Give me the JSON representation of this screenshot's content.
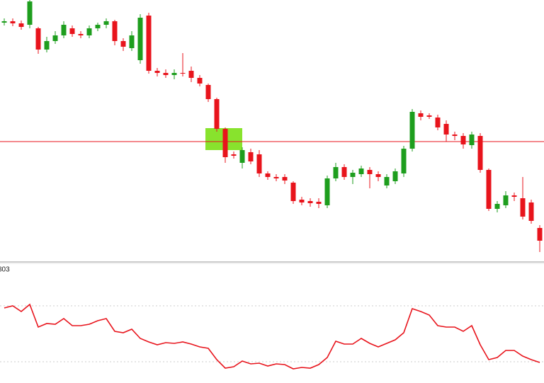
{
  "chart_data": [
    {
      "type": "candlestick",
      "ylim": [
        0,
        370
      ],
      "up_color": "#1e9e1e",
      "down_color": "#e8141c",
      "hline": 170,
      "hline_color": "#e8141c",
      "open": [
        338,
        340,
        337,
        335,
        330,
        300,
        312,
        320,
        330,
        322,
        320,
        330,
        335,
        340,
        312,
        302,
        285,
        348,
        270,
        267,
        264,
        267,
        270,
        260,
        250,
        230,
        188,
        152,
        140,
        155,
        152,
        125,
        120,
        120,
        112,
        88,
        86,
        85,
        80,
        118,
        134,
        120,
        124,
        130,
        124,
        108,
        114,
        125,
        160,
        210,
        207,
        204,
        195,
        180,
        178,
        165,
        178,
        130,
        75,
        80,
        94,
        90,
        84,
        48
      ],
      "high": [
        344,
        344,
        341,
        370,
        332,
        318,
        326,
        340,
        334,
        326,
        334,
        338,
        344,
        342,
        316,
        326,
        350,
        352,
        274,
        272,
        272,
        295,
        276,
        264,
        252,
        232,
        190,
        156,
        162,
        160,
        158,
        128,
        124,
        124,
        114,
        92,
        90,
        90,
        122,
        140,
        138,
        130,
        136,
        134,
        128,
        124,
        132,
        164,
        216,
        214,
        210,
        208,
        200,
        184,
        182,
        184,
        182,
        132,
        86,
        100,
        98,
        120,
        88,
        52
      ],
      "low": [
        334,
        333,
        328,
        330,
        294,
        296,
        308,
        316,
        318,
        316,
        316,
        326,
        330,
        306,
        298,
        298,
        280,
        266,
        262,
        260,
        258,
        262,
        254,
        248,
        226,
        184,
        140,
        146,
        132,
        138,
        120,
        116,
        114,
        110,
        82,
        80,
        78,
        76,
        76,
        114,
        116,
        110,
        120,
        104,
        114,
        104,
        110,
        120,
        156,
        200,
        202,
        186,
        170,
        172,
        160,
        160,
        126,
        72,
        70,
        76,
        86,
        60,
        54,
        14
      ],
      "close": [
        340,
        337,
        332,
        368,
        300,
        312,
        320,
        335,
        322,
        320,
        330,
        335,
        340,
        312,
        304,
        320,
        345,
        270,
        267,
        264,
        267,
        266,
        260,
        252,
        230,
        188,
        148,
        150,
        158,
        142,
        125,
        120,
        118,
        115,
        86,
        84,
        83,
        82,
        118,
        134,
        120,
        126,
        132,
        124,
        120,
        120,
        128,
        160,
        212,
        205,
        205,
        190,
        180,
        178,
        166,
        180,
        130,
        75,
        82,
        94,
        92,
        64,
        58,
        30
      ]
    },
    {
      "type": "line",
      "label": "803",
      "ylim": [
        0,
        166
      ],
      "color": "#e8141c",
      "grid_levels": [
        109,
        30
      ],
      "values": [
        106,
        109,
        101,
        111,
        79,
        84,
        83,
        91,
        81,
        81,
        83,
        88,
        91,
        73,
        71,
        76,
        63,
        58,
        54,
        57,
        56,
        58,
        55,
        51,
        49,
        33,
        21,
        23,
        31,
        27,
        28,
        24,
        27,
        26,
        20,
        22,
        21,
        26,
        36,
        59,
        55,
        55,
        63,
        56,
        51,
        56,
        61,
        71,
        105,
        101,
        96,
        81,
        79,
        79,
        73,
        81,
        54,
        33,
        36,
        46,
        46,
        38,
        33,
        29
      ]
    }
  ]
}
